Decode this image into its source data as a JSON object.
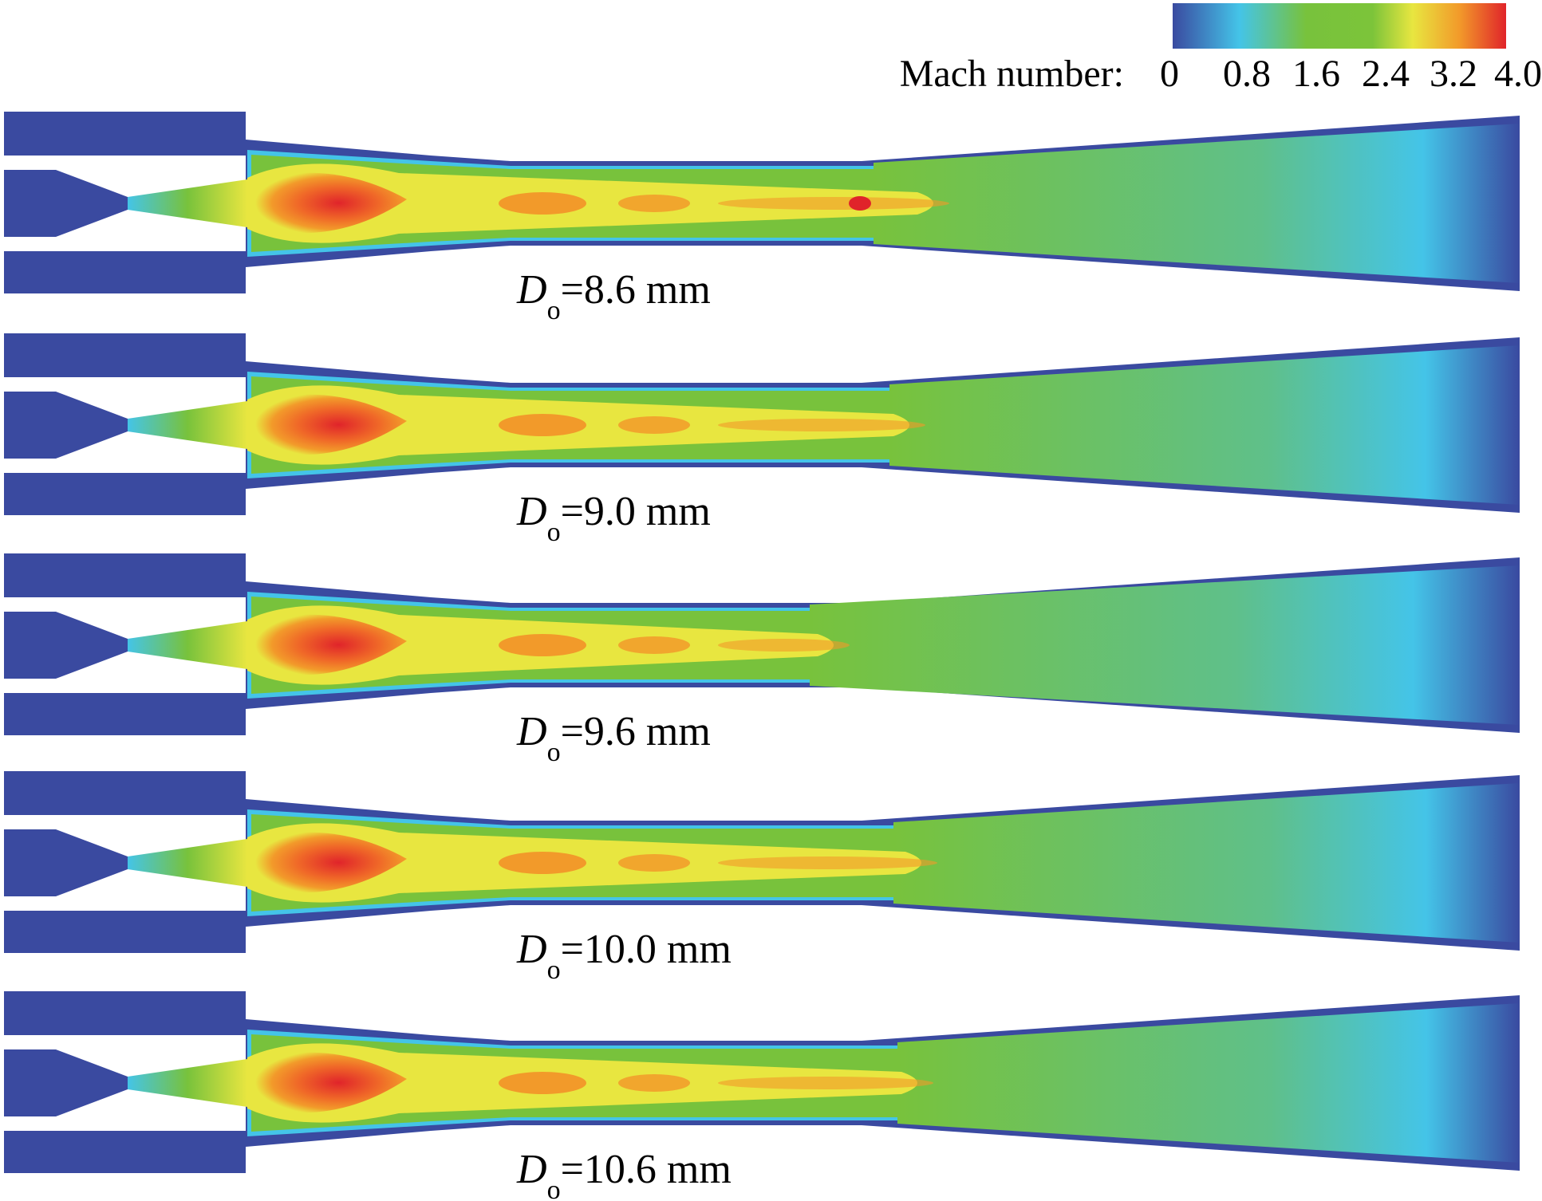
{
  "legend": {
    "title": "Mach number:",
    "ticks": [
      "0",
      "0.8",
      "1.6",
      "2.4",
      "3.2",
      "4.0"
    ],
    "colors": [
      "#3a4aa0",
      "#44c4e8",
      "#78c23c",
      "#e8e640",
      "#f29a2a",
      "#e0242a"
    ]
  },
  "colors": {
    "wall": "#3a4aa0",
    "flow": "#78c23c",
    "jet_hot": "#e0242a",
    "jet_warm": "#f29a2a",
    "jet_yellow": "#e8e640",
    "edge_cyan": "#44c4e8"
  },
  "cases": [
    {
      "label_var": "D",
      "label_sub": "o",
      "label_rest": "=8.6 mm"
    },
    {
      "label_var": "D",
      "label_sub": "o",
      "label_rest": "=9.0 mm"
    },
    {
      "label_var": "D",
      "label_sub": "o",
      "label_rest": "=9.6 mm"
    },
    {
      "label_var": "D",
      "label_sub": "o",
      "label_rest": "=10.0 mm"
    },
    {
      "label_var": "D",
      "label_sub": "o",
      "label_rest": "=10.6 mm"
    }
  ]
}
